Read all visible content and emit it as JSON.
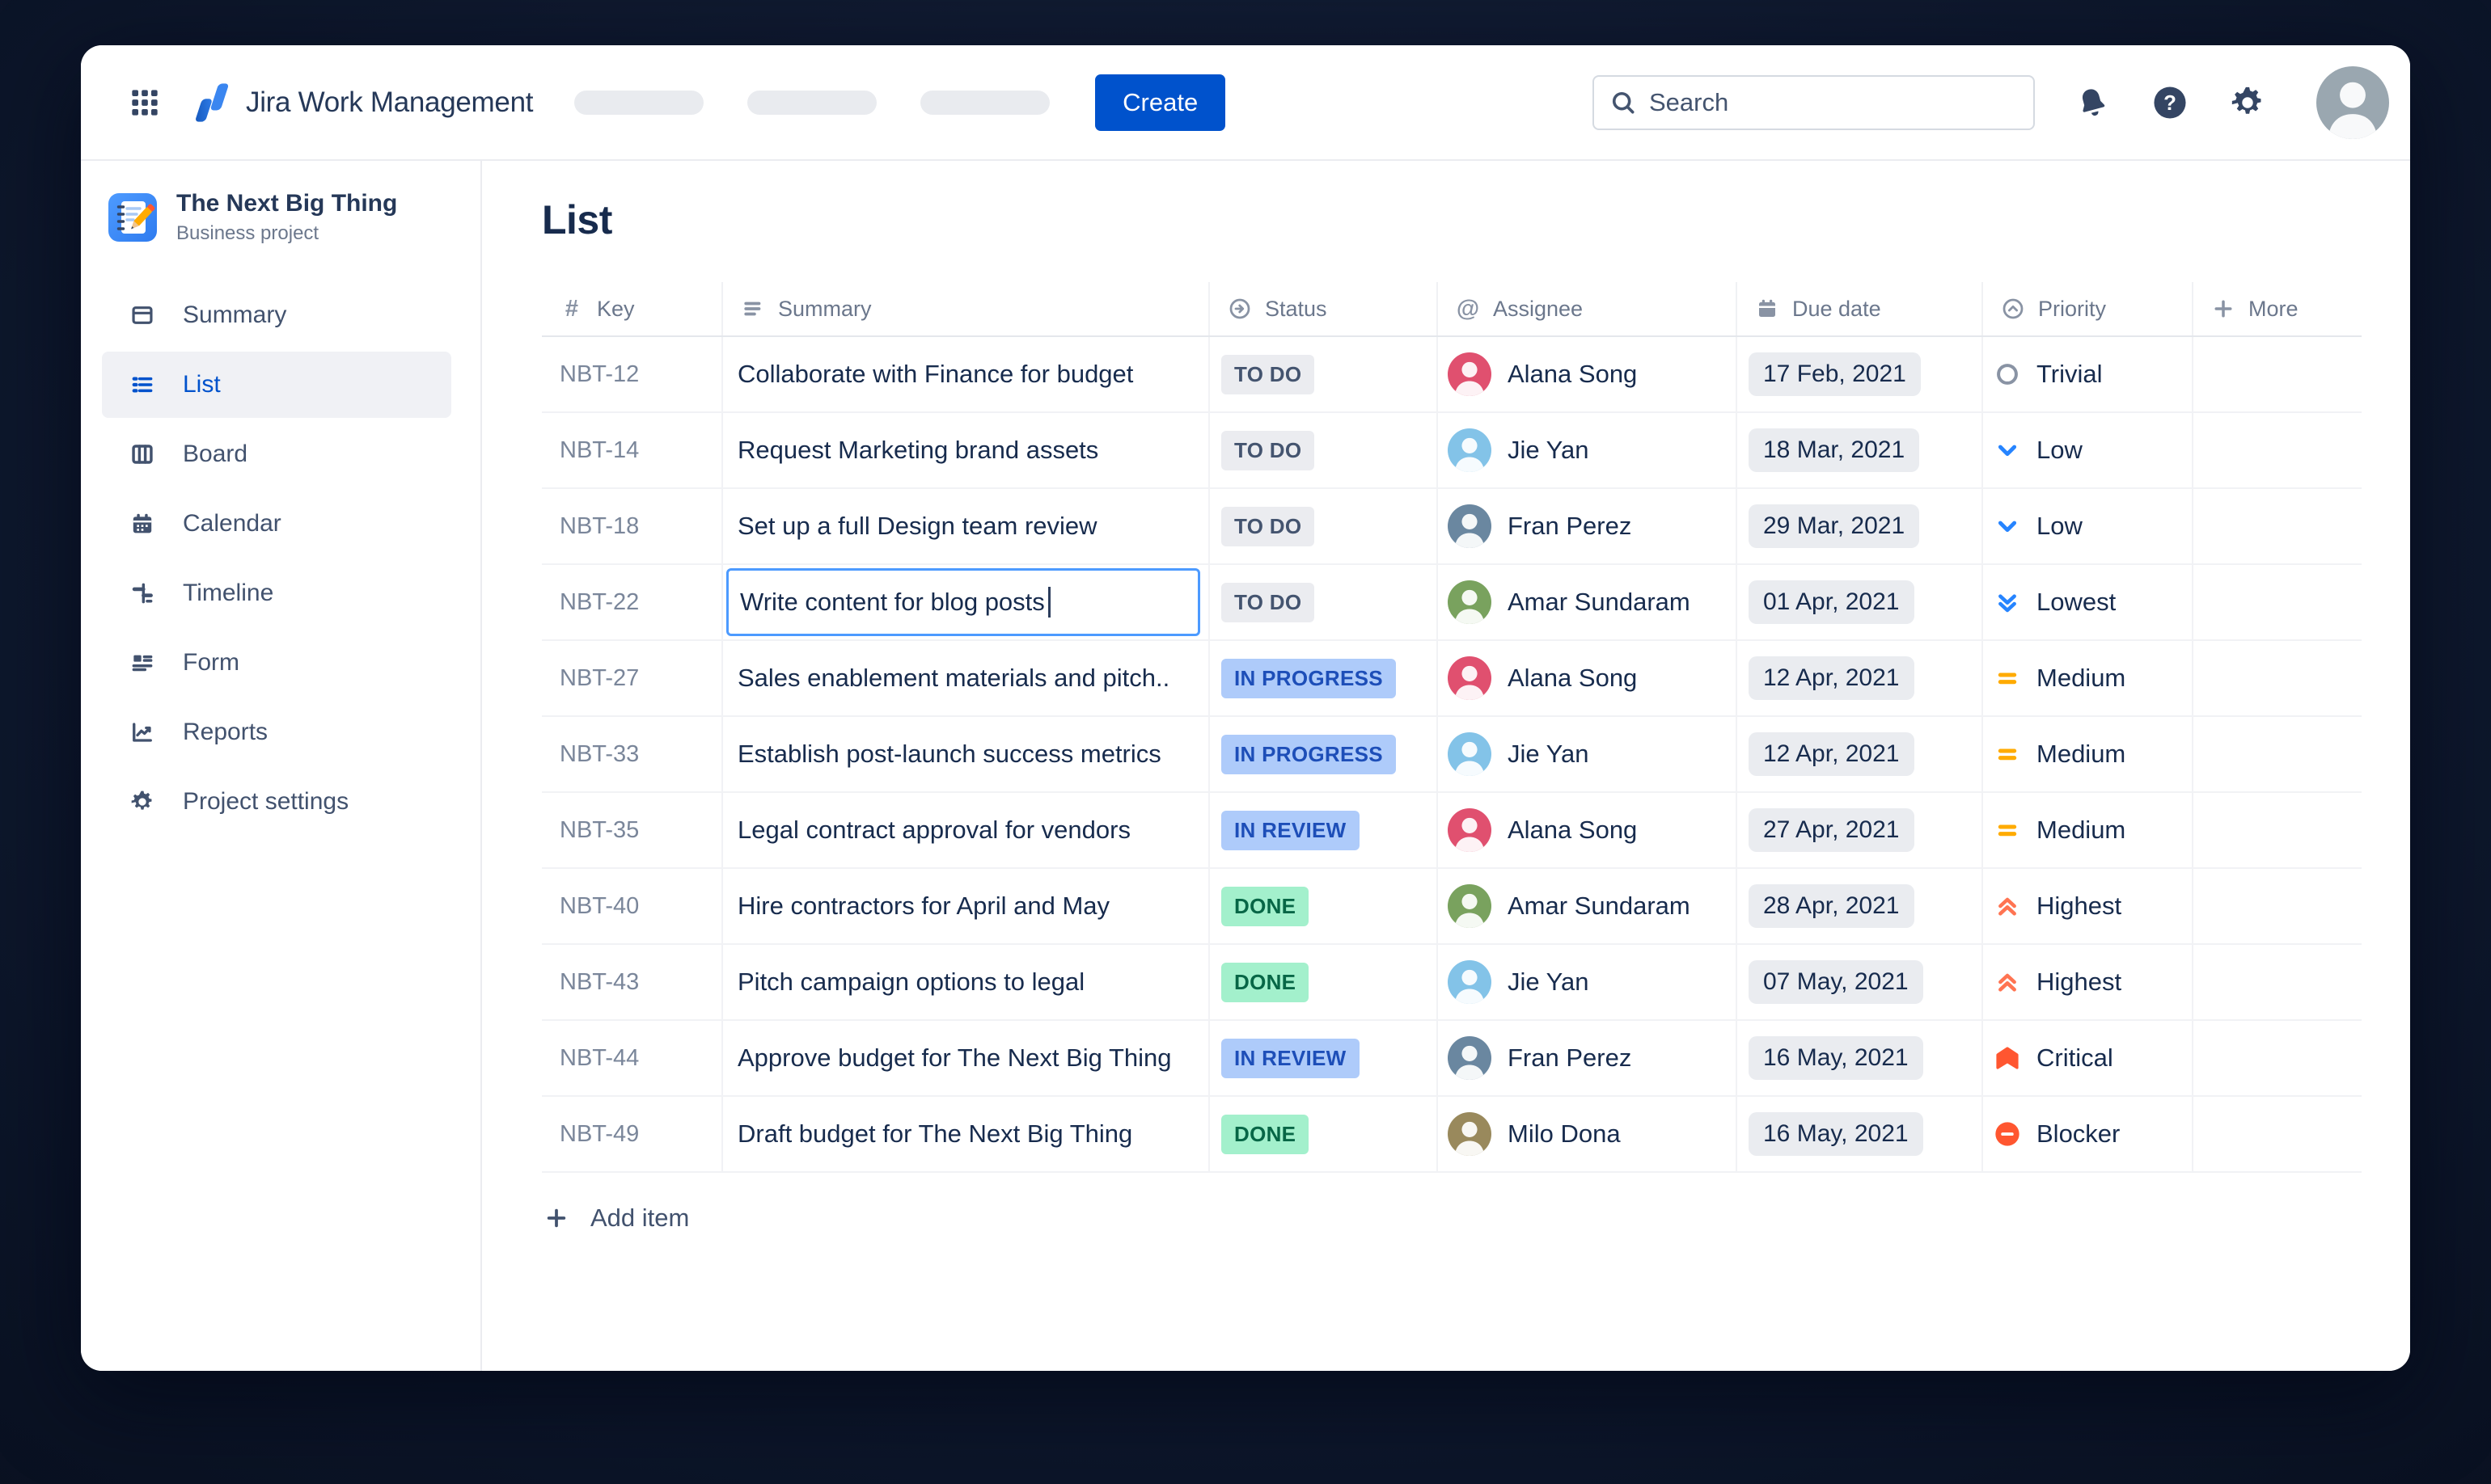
{
  "topbar": {
    "product_name": "Jira Work Management",
    "create_label": "Create",
    "search_placeholder": "Search"
  },
  "sidebar": {
    "project_name": "The Next Big Thing",
    "project_type": "Business project",
    "items": [
      {
        "label": "Summary",
        "icon": "summary-icon",
        "selected": false
      },
      {
        "label": "List",
        "icon": "list-icon",
        "selected": true
      },
      {
        "label": "Board",
        "icon": "board-icon",
        "selected": false
      },
      {
        "label": "Calendar",
        "icon": "calendar-icon",
        "selected": false
      },
      {
        "label": "Timeline",
        "icon": "timeline-icon",
        "selected": false
      },
      {
        "label": "Form",
        "icon": "form-icon",
        "selected": false
      },
      {
        "label": "Reports",
        "icon": "reports-icon",
        "selected": false
      },
      {
        "label": "Project settings",
        "icon": "settings-icon",
        "selected": false
      }
    ]
  },
  "main": {
    "title": "List",
    "columns": [
      {
        "label": "Key",
        "icon": "hash-icon"
      },
      {
        "label": "Summary",
        "icon": "text-lines-icon"
      },
      {
        "label": "Status",
        "icon": "status-circle-icon"
      },
      {
        "label": "Assignee",
        "icon": "at-icon"
      },
      {
        "label": "Due date",
        "icon": "calendar-solid-icon"
      },
      {
        "label": "Priority",
        "icon": "chevron-circle-icon"
      },
      {
        "label": "More",
        "icon": "plus-icon"
      }
    ],
    "add_item_label": "Add item",
    "rows": [
      {
        "key": "NBT-12",
        "summary": "Collaborate with Finance for budget",
        "status": "TO DO",
        "status_type": "todo",
        "assignee": "Alana Song",
        "avatar_color": "#E0506F",
        "due": "17 Feb, 2021",
        "priority": "Trivial",
        "priority_icon": "priority-trivial-icon",
        "editing": false
      },
      {
        "key": "NBT-14",
        "summary": "Request Marketing brand assets",
        "status": "TO DO",
        "status_type": "todo",
        "assignee": "Jie Yan",
        "avatar_color": "#83C3E8",
        "due": "18 Mar, 2021",
        "priority": "Low",
        "priority_icon": "priority-low-icon",
        "editing": false
      },
      {
        "key": "NBT-18",
        "summary": "Set up a full Design team review",
        "status": "TO DO",
        "status_type": "todo",
        "assignee": "Fran Perez",
        "avatar_color": "#6A87A0",
        "due": "29 Mar, 2021",
        "priority": "Low",
        "priority_icon": "priority-low-icon",
        "editing": false
      },
      {
        "key": "NBT-22",
        "summary": "Write content for blog posts",
        "status": "TO DO",
        "status_type": "todo",
        "assignee": "Amar Sundaram",
        "avatar_color": "#79A25E",
        "due": "01 Apr, 2021",
        "priority": "Lowest",
        "priority_icon": "priority-lowest-icon",
        "editing": true
      },
      {
        "key": "NBT-27",
        "summary": "Sales enablement materials and pitch..",
        "status": "IN PROGRESS",
        "status_type": "inprogress",
        "assignee": "Alana Song",
        "avatar_color": "#E0506F",
        "due": "12 Apr, 2021",
        "priority": "Medium",
        "priority_icon": "priority-medium-icon",
        "editing": false
      },
      {
        "key": "NBT-33",
        "summary": "Establish post-launch success metrics",
        "status": "IN PROGRESS",
        "status_type": "inprogress",
        "assignee": "Jie Yan",
        "avatar_color": "#83C3E8",
        "due": "12 Apr, 2021",
        "priority": "Medium",
        "priority_icon": "priority-medium-icon",
        "editing": false
      },
      {
        "key": "NBT-35",
        "summary": "Legal contract approval for vendors",
        "status": "IN REVIEW",
        "status_type": "inreview",
        "assignee": "Alana Song",
        "avatar_color": "#E0506F",
        "due": "27 Apr, 2021",
        "priority": "Medium",
        "priority_icon": "priority-medium-icon",
        "editing": false
      },
      {
        "key": "NBT-40",
        "summary": "Hire contractors for April and May",
        "status": "DONE",
        "status_type": "done",
        "assignee": "Amar Sundaram",
        "avatar_color": "#79A25E",
        "due": "28 Apr, 2021",
        "priority": "Highest",
        "priority_icon": "priority-highest-icon",
        "editing": false
      },
      {
        "key": "NBT-43",
        "summary": "Pitch campaign options to legal",
        "status": "DONE",
        "status_type": "done",
        "assignee": "Jie Yan",
        "avatar_color": "#83C3E8",
        "due": "07 May, 2021",
        "priority": "Highest",
        "priority_icon": "priority-highest-icon",
        "editing": false
      },
      {
        "key": "NBT-44",
        "summary": "Approve budget for The Next Big Thing",
        "status": "IN REVIEW",
        "status_type": "inreview",
        "assignee": "Fran Perez",
        "avatar_color": "#6A87A0",
        "due": "16 May, 2021",
        "priority": "Critical",
        "priority_icon": "priority-critical-icon",
        "editing": false
      },
      {
        "key": "NBT-49",
        "summary": "Draft budget for The Next Big Thing",
        "status": "DONE",
        "status_type": "done",
        "assignee": "Milo Dona",
        "avatar_color": "#99895C",
        "due": "16 May, 2021",
        "priority": "Blocker",
        "priority_icon": "priority-blocker-icon",
        "editing": false
      }
    ]
  },
  "colors": {
    "accent_blue": "#0052CC",
    "status_todo_bg": "#EBECF0",
    "status_todo_text": "#44546F",
    "status_inprogress_bg": "#AECBFA",
    "status_inprogress_text": "#1D4EB8",
    "status_done_bg": "#A3F0CC",
    "status_done_text": "#076646",
    "priority_low": "#2684FF",
    "priority_medium": "#FFAB00",
    "priority_highest": "#FF7452",
    "priority_critical": "#FF5630",
    "priority_blocker": "#FF5630",
    "priority_trivial": "#8993A4",
    "edit_border": "#4C9AFF"
  }
}
